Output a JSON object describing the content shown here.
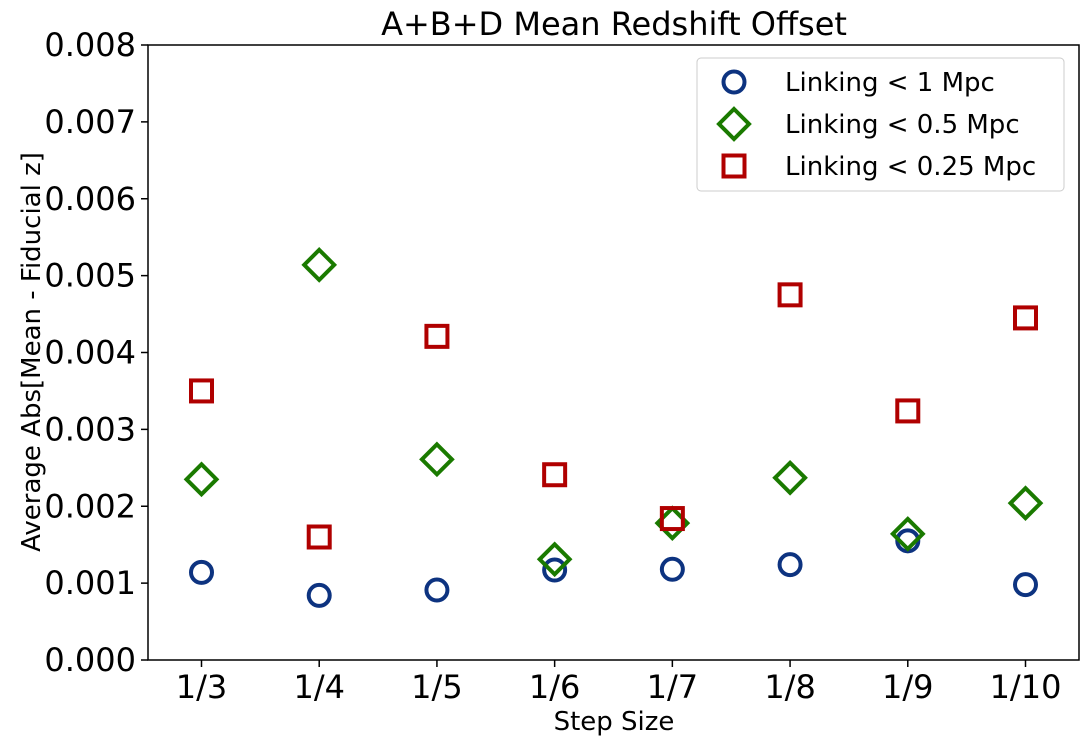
{
  "chart_data": {
    "type": "scatter",
    "title": "A+B+D Mean Redshift Offset",
    "xlabel": "Step Size",
    "ylabel": "Average Abs[Mean - Fiducial z]",
    "categories": [
      "1/3",
      "1/4",
      "1/5",
      "1/6",
      "1/7",
      "1/8",
      "1/9",
      "1/10"
    ],
    "ylim": [
      0,
      0.008
    ],
    "yticks": [
      "0.000",
      "0.001",
      "0.002",
      "0.003",
      "0.004",
      "0.005",
      "0.006",
      "0.007",
      "0.008"
    ],
    "grid": false,
    "legend_position": "top-right",
    "series": [
      {
        "name": "Linking < 1 Mpc",
        "marker": "circle",
        "color": "#0d3380",
        "values": [
          0.00114,
          0.00084,
          0.00091,
          0.00117,
          0.00118,
          0.00124,
          0.00155,
          0.00098
        ]
      },
      {
        "name": "Linking < 0.5 Mpc",
        "marker": "diamond",
        "color": "#1a7a00",
        "values": [
          0.00235,
          0.00514,
          0.00261,
          0.00131,
          0.00178,
          0.00237,
          0.00164,
          0.00204
        ]
      },
      {
        "name": "Linking < 0.25 Mpc",
        "marker": "square",
        "color": "#b00000",
        "values": [
          0.0035,
          0.0016,
          0.00421,
          0.00241,
          0.00184,
          0.00475,
          0.00324,
          0.00445
        ]
      }
    ]
  }
}
